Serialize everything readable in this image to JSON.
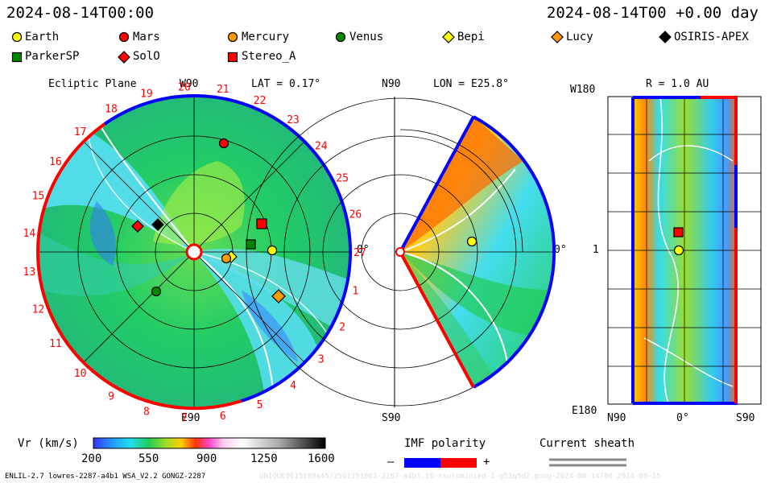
{
  "header": {
    "left_time": "2024-08-14T00:00",
    "right_time": "2024-08-14T00 +0.00 day"
  },
  "legend": [
    {
      "name": "Earth",
      "color": "#ffff00",
      "shape": "circle"
    },
    {
      "name": "Mars",
      "color": "#ff0000",
      "shape": "circle"
    },
    {
      "name": "Mercury",
      "color": "#ff9900",
      "shape": "circle"
    },
    {
      "name": "Venus",
      "color": "#008800",
      "shape": "circle"
    },
    {
      "name": "Bepi",
      "color": "#ffff00",
      "shape": "diamond"
    },
    {
      "name": "Lucy",
      "color": "#ff9900",
      "shape": "diamond"
    },
    {
      "name": "OSIRIS-APEX",
      "color": "#000000",
      "shape": "diamond"
    },
    {
      "name": "ParkerSP",
      "color": "#008800",
      "shape": "square"
    },
    {
      "name": "SolO",
      "color": "#ff0000",
      "shape": "diamond"
    },
    {
      "name": "Stereo_A",
      "color": "#ff0000",
      "shape": "square"
    }
  ],
  "panels": {
    "ecliptic": {
      "title": "Ecliptic Plane",
      "lat": "LAT = 0.17°",
      "top": "W90",
      "bottom": "E90",
      "right": "0°"
    },
    "meridional": {
      "top": "N90",
      "lon": "LON = E25.8°",
      "bottom": "S90",
      "right": "0°"
    },
    "sphere": {
      "r": "R = 1.0 AU",
      "left_top": "W180",
      "left_mid": "1",
      "left_bottom": "E180",
      "x_left": "N90",
      "x_mid": "0°",
      "x_right": "S90"
    }
  },
  "carrington_labels": [
    "1",
    "2",
    "3",
    "4",
    "5",
    "6",
    "7",
    "8",
    "9",
    "10",
    "11",
    "12",
    "13",
    "14",
    "15",
    "16",
    "17",
    "18",
    "19",
    "20",
    "21",
    "22",
    "23",
    "24",
    "25",
    "26",
    "27"
  ],
  "colorbar": {
    "label": "Vr (km/s)",
    "ticks": [
      "200",
      "550",
      "900",
      "1250",
      "1600"
    ],
    "range": [
      200,
      1600
    ]
  },
  "imf": {
    "label": "IMF polarity",
    "minus": "–",
    "plus": "+",
    "neg_color": "#0000ff",
    "pos_color": "#ff0000"
  },
  "sheath": {
    "label": "Current sheath"
  },
  "footer": "ENLIL-2.7 lowres-2287-a4b1 WSA_V2.2 GONGZ-2287",
  "watermark": "UNIQUE0615189a45/2561351801-2287-a4b1.16-nsoluminied-1-g53q5d2.gong-2024-08-14T00  2024-08-15"
}
